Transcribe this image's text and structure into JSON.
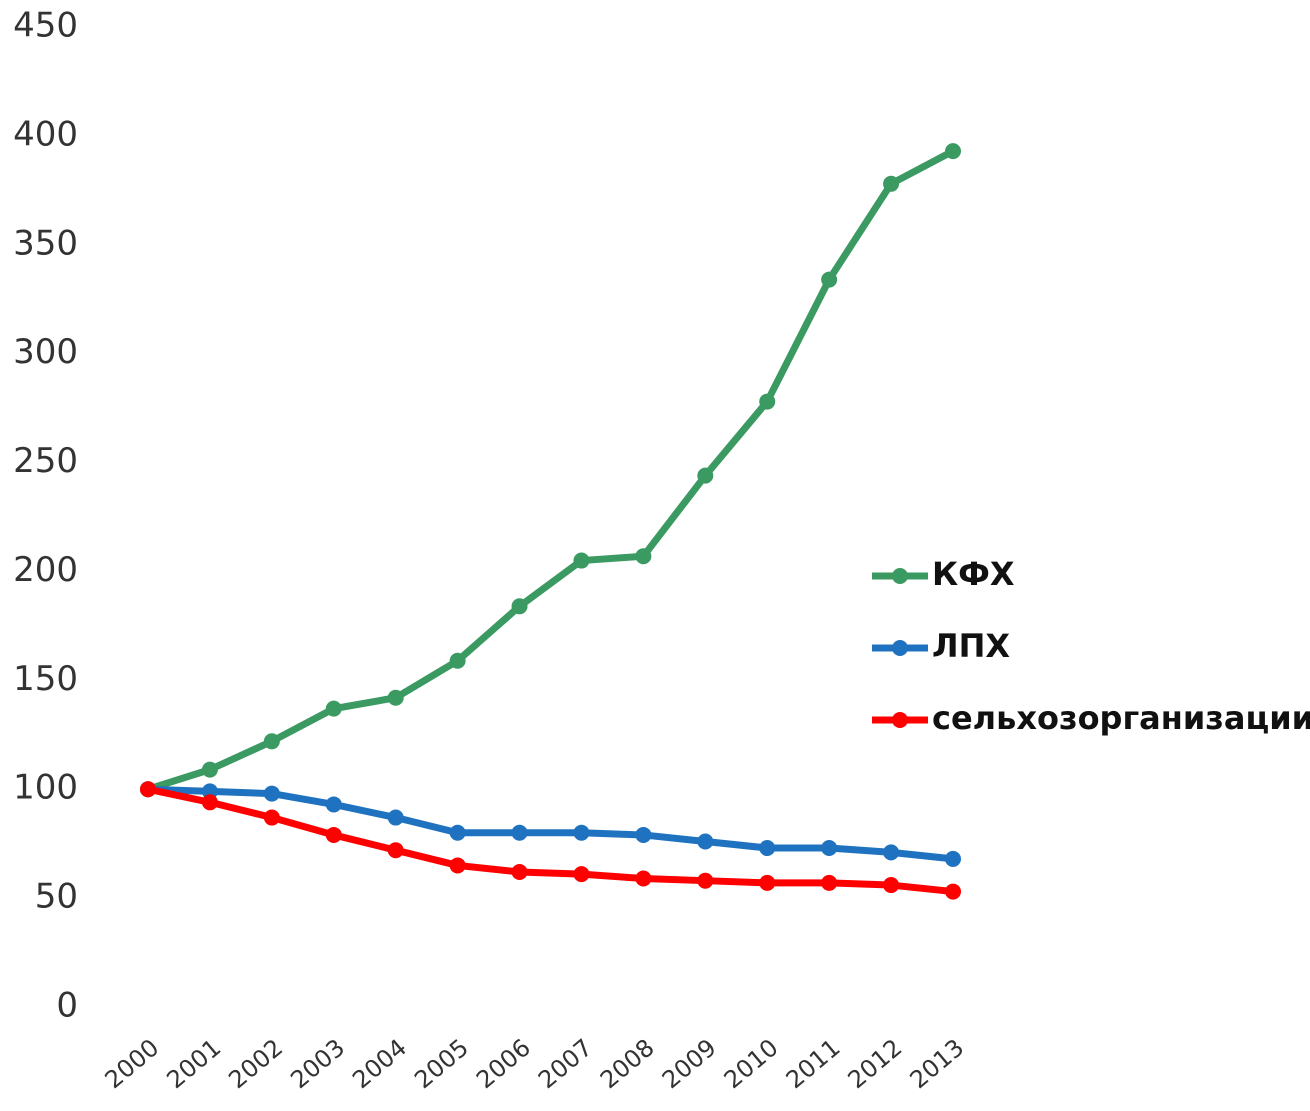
{
  "chart_data": {
    "type": "line",
    "categories": [
      "2000",
      "2001",
      "2002",
      "2003",
      "2004",
      "2005",
      "2006",
      "2007",
      "2008",
      "2009",
      "2010",
      "2011",
      "2012",
      "2013"
    ],
    "series": [
      {
        "name": "КФХ",
        "color": "#3a9a62",
        "values": [
          100,
          109,
          122,
          137,
          142,
          159,
          184,
          205,
          207,
          244,
          278,
          334,
          378,
          393
        ]
      },
      {
        "name": "ЛПХ",
        "color": "#1f72c0",
        "values": [
          100,
          99,
          98,
          93,
          87,
          80,
          80,
          80,
          79,
          76,
          73,
          73,
          71,
          68
        ]
      },
      {
        "name": "сельхозорганизации",
        "color": "#ff0000",
        "values": [
          100,
          94,
          87,
          79,
          72,
          65,
          62,
          61,
          59,
          58,
          57,
          57,
          56,
          53
        ]
      }
    ],
    "ylim": [
      0,
      450
    ],
    "yticks": [
      0,
      50,
      100,
      150,
      200,
      250,
      300,
      350,
      400,
      450
    ],
    "grid": false,
    "legend": "right"
  }
}
